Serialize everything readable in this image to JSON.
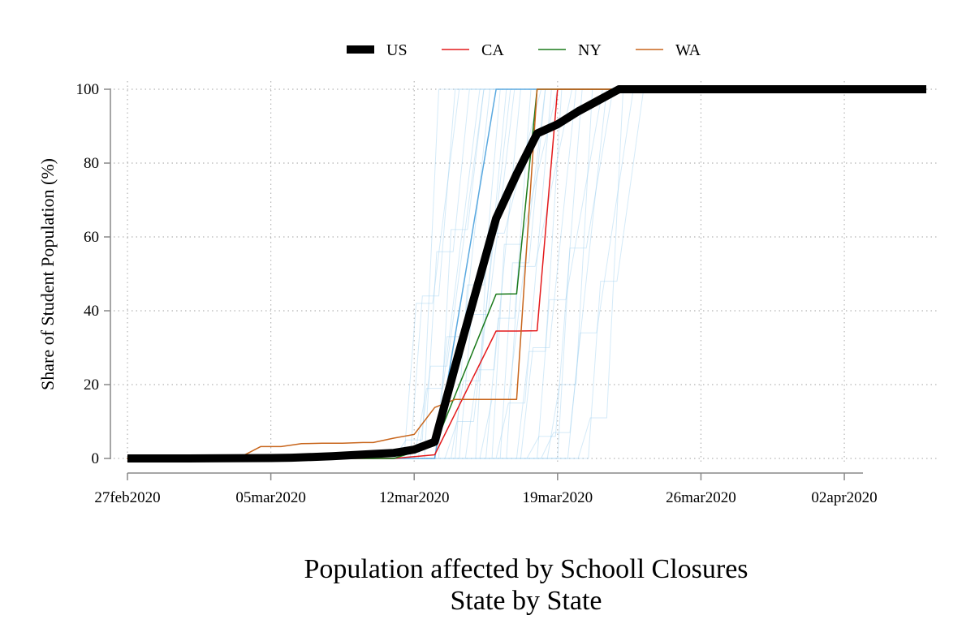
{
  "chart_data": {
    "type": "line",
    "title": "Population affected by Schooll Closures",
    "subtitle": "State by State",
    "xlabel": "",
    "ylabel": "Share of Student Population (%)",
    "x_ticks": [
      "27feb2020",
      "05mar2020",
      "12mar2020",
      "19mar2020",
      "26mar2020",
      "02apr2020"
    ],
    "x_tick_days": [
      0,
      7,
      14,
      21,
      28,
      35
    ],
    "x_range_days": [
      0,
      36
    ],
    "ylim": [
      0,
      100
    ],
    "y_ticks": [
      0,
      20,
      40,
      60,
      80,
      100
    ],
    "grid": true,
    "legend_position": "top",
    "legend": [
      {
        "name": "US",
        "color": "#000000",
        "width": 10
      },
      {
        "name": "CA",
        "color": "#e41a1c",
        "width": 1.5
      },
      {
        "name": "NY",
        "color": "#1a7a1a",
        "width": 1.5
      },
      {
        "name": "WA",
        "color": "#c8651b",
        "width": 1.5
      }
    ],
    "series": [
      {
        "name": "US",
        "color": "#000000",
        "width": 10,
        "x": [
          0,
          3,
          7,
          8,
          9,
          10,
          11,
          12,
          13,
          14,
          15,
          16,
          17,
          18,
          19,
          20,
          21,
          22,
          23,
          24,
          25,
          26,
          27,
          28,
          29,
          30,
          31,
          32,
          33,
          34,
          35,
          36,
          37,
          38,
          39
        ],
        "y": [
          0,
          0,
          0.1,
          0.2,
          0.4,
          0.6,
          0.9,
          1.2,
          1.5,
          2.4,
          4.5,
          25,
          45,
          65,
          77,
          88,
          90.5,
          94,
          97,
          100,
          100,
          100,
          100,
          100,
          100,
          100,
          100,
          100,
          100,
          100,
          100,
          100,
          100,
          100,
          100
        ]
      },
      {
        "name": "CA",
        "color": "#e41a1c",
        "width": 1.5,
        "x": [
          0,
          13,
          15,
          18,
          19,
          20,
          21,
          22,
          24
        ],
        "y": [
          0,
          0,
          1,
          34.5,
          34.5,
          34.6,
          100,
          100,
          100
        ]
      },
      {
        "name": "NY",
        "color": "#1a7a1a",
        "width": 1.5,
        "x": [
          0,
          13,
          15,
          18,
          19,
          20,
          21,
          24
        ],
        "y": [
          0,
          0,
          3.5,
          44.5,
          44.6,
          100,
          100,
          100
        ]
      },
      {
        "name": "WA",
        "color": "#c8651b",
        "width": 1.5,
        "x": [
          0,
          3.5,
          4.5,
          5.5,
          6.5,
          7.5,
          8.5,
          9.5,
          10.5,
          11.5,
          12,
          13,
          14,
          15,
          16,
          17,
          18,
          19,
          20,
          21,
          24
        ],
        "y": [
          0,
          0,
          0,
          0.3,
          3.2,
          3.2,
          4.0,
          4.1,
          4.1,
          4.3,
          4.3,
          5.5,
          6.5,
          13.8,
          16,
          16,
          16,
          16,
          100,
          100,
          100
        ]
      }
    ]
  }
}
